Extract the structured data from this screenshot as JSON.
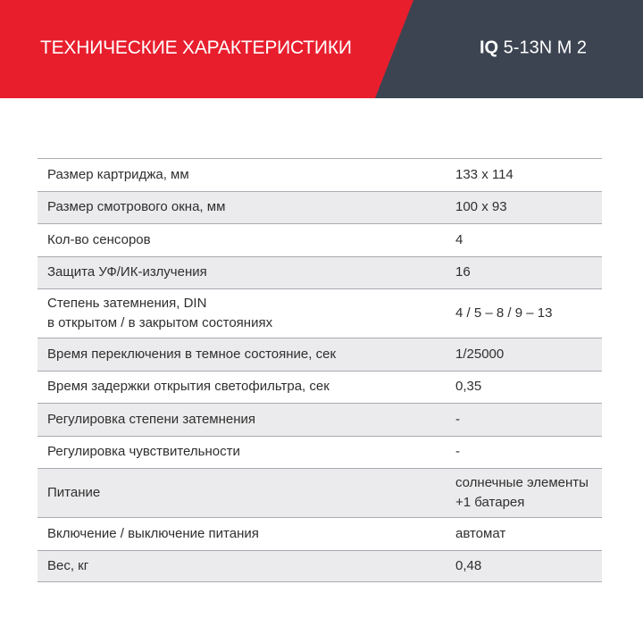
{
  "header": {
    "title": "ТЕХНИЧЕСКИЕ ХАРАКТЕРИСТИКИ",
    "model_bold": "IQ",
    "model_rest": " 5-13N M 2",
    "colors": {
      "banner_red": "#e81e2d",
      "banner_slate": "#3c4452"
    }
  },
  "table": {
    "rows": [
      {
        "label": "Размер картриджа, мм",
        "value": "133 х 114"
      },
      {
        "label": "Размер смотрового окна, мм",
        "value": "100 х 93"
      },
      {
        "label": "Кол-во сенсоров",
        "value": "4"
      },
      {
        "label": "Защита УФ/ИК-излучения",
        "value": "16"
      },
      {
        "label": "Степень затемнения, DIN\nв открытом / в закрытом состояниях",
        "value": "4 / 5 – 8 / 9 – 13"
      },
      {
        "label": "Время переключения в темное состояние, сек",
        "value": "1/25000"
      },
      {
        "label": "Время задержки открытия светофильтра, сек",
        "value": "0,35"
      },
      {
        "label": "Регулировка степени затемнения",
        "value": "-"
      },
      {
        "label": "Регулировка чувствительности",
        "value": "-"
      },
      {
        "label": "Питание",
        "value": "солнечные элементы\n+1 батарея"
      },
      {
        "label": "Включение / выключение питания",
        "value": "автомат"
      },
      {
        "label": "Вес, кг",
        "value": "0,48"
      }
    ]
  }
}
